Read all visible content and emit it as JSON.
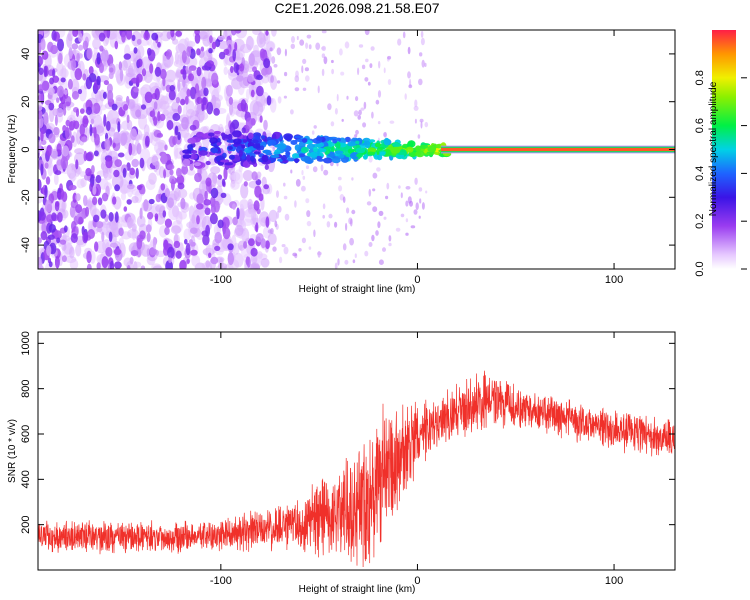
{
  "title": "C2E1.2026.098.21.58.E07",
  "chart_data": [
    {
      "type": "heatmap",
      "name": "spectrogram",
      "xlabel": "Height of straight line (km)",
      "ylabel": "Frequency (Hz)",
      "xlim": [
        -193,
        131
      ],
      "ylim": [
        -50,
        50
      ],
      "xticks": [
        -100,
        0,
        100
      ],
      "yticks": [
        -40,
        -20,
        0,
        20,
        40
      ],
      "xtick_labels": [
        "-100",
        "0",
        "100"
      ],
      "ytick_labels": [
        "-40",
        "-20",
        "0",
        "20",
        "40"
      ],
      "colorbar": {
        "label": "Normalized spectral amplitude",
        "range": [
          0,
          1
        ],
        "ticks": [
          0.0,
          0.2,
          0.4,
          0.6,
          0.8
        ],
        "tick_labels": [
          "0.0",
          "0.2",
          "0.4",
          "0.6",
          "0.8"
        ]
      },
      "features": [
        {
          "x_range": [
            -193,
            -75
          ],
          "freq_range": [
            -50,
            50
          ],
          "amplitude": "low (0.1-0.25)",
          "description": "scattered purple noise blobs"
        },
        {
          "x_range": [
            -115,
            -65
          ],
          "freq_range": [
            -8,
            8
          ],
          "amplitude": "0.2-0.35"
        },
        {
          "x_range": [
            -70,
            10
          ],
          "freq_range": [
            -5,
            5
          ],
          "amplitude": "0.3-0.6"
        },
        {
          "x_range": [
            -15,
            15
          ],
          "freq_range": [
            -2,
            2
          ],
          "amplitude": "0.6-0.9"
        },
        {
          "x_range": [
            12,
            131
          ],
          "freq": 0,
          "amplitude": "~0.95 steady line"
        }
      ]
    },
    {
      "type": "line",
      "name": "snr",
      "color": "#f0302a",
      "xlabel": "Height of straight line (km)",
      "ylabel": "SNR (10 * v/v)",
      "xlim": [
        -193,
        131
      ],
      "ylim": [
        0,
        1050
      ],
      "xticks": [
        -100,
        0,
        100
      ],
      "yticks": [
        200,
        400,
        600,
        800,
        1000
      ],
      "xtick_labels": [
        "-100",
        "0",
        "100"
      ],
      "ytick_labels": [
        "200",
        "400",
        "600",
        "800",
        "1000"
      ],
      "envelope": {
        "x": [
          -193,
          -150,
          -100,
          -75,
          -60,
          -45,
          -35,
          -25,
          -15,
          -5,
          5,
          15,
          25,
          35,
          45,
          60,
          80,
          100,
          115,
          131
        ],
        "mean": [
          150,
          145,
          150,
          180,
          200,
          240,
          280,
          330,
          420,
          540,
          620,
          670,
          720,
          760,
          730,
          690,
          660,
          620,
          600,
          560
        ],
        "spread": [
          80,
          80,
          80,
          110,
          140,
          220,
          280,
          360,
          330,
          240,
          140,
          130,
          140,
          160,
          110,
          100,
          100,
          100,
          100,
          110
        ]
      }
    }
  ]
}
